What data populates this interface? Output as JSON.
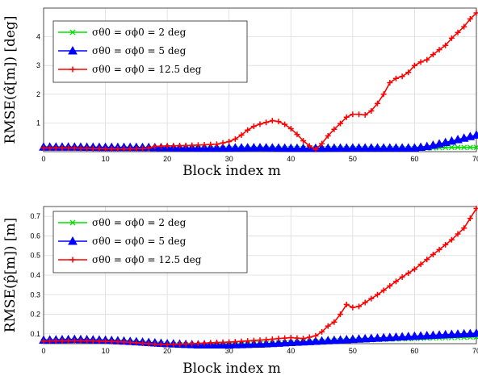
{
  "chart_data": [
    {
      "type": "line",
      "xlabel": "Block index m",
      "ylabel": "RMSE(α̂[m]) [deg]",
      "xlim": [
        0,
        70
      ],
      "ylim": [
        0,
        5
      ],
      "xticks": [
        "0",
        "10",
        "20",
        "30",
        "40",
        "50",
        "60",
        "70"
      ],
      "yticks": [
        "1",
        "2",
        "3",
        "4"
      ],
      "grid": true,
      "legend_position": "top-left",
      "series": [
        {
          "name": "σθ0 = σϕ0 = 2 deg",
          "color": "#00e000",
          "marker": "x",
          "x": [
            0,
            5,
            10,
            15,
            20,
            25,
            30,
            35,
            40,
            45,
            50,
            55,
            60,
            62,
            64,
            66,
            68,
            70
          ],
          "y": [
            0.12,
            0.12,
            0.11,
            0.11,
            0.11,
            0.11,
            0.11,
            0.11,
            0.11,
            0.11,
            0.11,
            0.11,
            0.11,
            0.12,
            0.14,
            0.15,
            0.15,
            0.15
          ]
        },
        {
          "name": "σθ0 = σϕ0 = 5 deg",
          "color": "#0000ff",
          "marker": "triangle",
          "x": [
            0,
            5,
            10,
            15,
            20,
            25,
            30,
            35,
            40,
            45,
            50,
            55,
            60,
            62,
            64,
            66,
            68,
            70
          ],
          "y": [
            0.16,
            0.16,
            0.15,
            0.15,
            0.14,
            0.13,
            0.13,
            0.14,
            0.12,
            0.12,
            0.13,
            0.13,
            0.13,
            0.18,
            0.27,
            0.37,
            0.47,
            0.58
          ]
        },
        {
          "name": "σθ0 = σϕ0 = 12.5 deg",
          "color": "#ff0000",
          "marker": "plus",
          "x": [
            0,
            2,
            4,
            6,
            8,
            10,
            12,
            14,
            16,
            17,
            18,
            20,
            22,
            24,
            26,
            28,
            30,
            31,
            32,
            33,
            34,
            35,
            36,
            37,
            38,
            39,
            40,
            41,
            42,
            43,
            44,
            45,
            46,
            47,
            48,
            49,
            50,
            51,
            52,
            53,
            54,
            55,
            56,
            57,
            58,
            59,
            60,
            61,
            62,
            63,
            64,
            65,
            66,
            67,
            68,
            69,
            70
          ],
          "y": [
            0.13,
            0.13,
            0.13,
            0.12,
            0.11,
            0.1,
            0.1,
            0.1,
            0.11,
            0.13,
            0.18,
            0.2,
            0.21,
            0.22,
            0.24,
            0.26,
            0.35,
            0.44,
            0.58,
            0.75,
            0.88,
            0.96,
            1.02,
            1.08,
            1.05,
            0.95,
            0.8,
            0.6,
            0.38,
            0.2,
            0.08,
            0.28,
            0.55,
            0.78,
            0.98,
            1.2,
            1.3,
            1.3,
            1.28,
            1.42,
            1.68,
            2.0,
            2.4,
            2.55,
            2.62,
            2.76,
            3.0,
            3.12,
            3.2,
            3.38,
            3.55,
            3.7,
            3.95,
            4.15,
            4.35,
            4.62,
            4.83
          ]
        }
      ]
    },
    {
      "type": "line",
      "xlabel": "Block index m",
      "ylabel": "RMSE(p̂[m]) [m]",
      "xlim": [
        0,
        70
      ],
      "ylim": [
        0.05,
        0.75
      ],
      "xticks": [
        "0",
        "10",
        "20",
        "30",
        "40",
        "50",
        "60",
        "70"
      ],
      "yticks": [
        "0.1",
        "0.2",
        "0.3",
        "0.4",
        "0.5",
        "0.6",
        "0.7"
      ],
      "grid": true,
      "legend_position": "top-left",
      "series": [
        {
          "name": "σθ0 = σϕ0 = 2 deg",
          "color": "#00e000",
          "marker": "x",
          "x": [
            0,
            5,
            10,
            15,
            20,
            25,
            30,
            35,
            40,
            45,
            50,
            55,
            60,
            65,
            70
          ],
          "y": [
            0.062,
            0.066,
            0.062,
            0.056,
            0.047,
            0.042,
            0.045,
            0.05,
            0.056,
            0.062,
            0.068,
            0.072,
            0.076,
            0.08,
            0.084
          ]
        },
        {
          "name": "σθ0 = σϕ0 = 5 deg",
          "color": "#0000ff",
          "marker": "triangle",
          "x": [
            0,
            5,
            10,
            15,
            20,
            25,
            30,
            35,
            40,
            45,
            50,
            55,
            60,
            65,
            70
          ],
          "y": [
            0.068,
            0.072,
            0.068,
            0.06,
            0.05,
            0.044,
            0.044,
            0.048,
            0.056,
            0.064,
            0.072,
            0.08,
            0.088,
            0.096,
            0.103
          ]
        },
        {
          "name": "σθ0 = σϕ0 = 12.5 deg",
          "color": "#ff0000",
          "marker": "plus",
          "x": [
            0,
            2,
            4,
            6,
            8,
            10,
            12,
            14,
            16,
            18,
            20,
            22,
            24,
            26,
            28,
            30,
            32,
            34,
            36,
            38,
            40,
            42,
            44,
            45,
            46,
            47,
            48,
            49,
            50,
            51,
            52,
            54,
            56,
            58,
            60,
            62,
            64,
            66,
            68,
            70
          ],
          "y": [
            0.063,
            0.064,
            0.065,
            0.065,
            0.064,
            0.062,
            0.06,
            0.057,
            0.052,
            0.048,
            0.046,
            0.048,
            0.05,
            0.053,
            0.056,
            0.058,
            0.062,
            0.066,
            0.07,
            0.076,
            0.081,
            0.076,
            0.09,
            0.11,
            0.14,
            0.16,
            0.2,
            0.25,
            0.235,
            0.24,
            0.26,
            0.3,
            0.345,
            0.39,
            0.43,
            0.48,
            0.53,
            0.58,
            0.64,
            0.74
          ]
        }
      ]
    }
  ]
}
